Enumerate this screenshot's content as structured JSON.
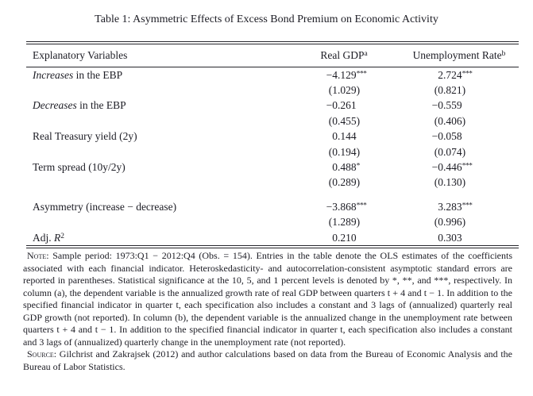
{
  "title": "Table 1: Asymmetric Effects of Excess Bond Premium on Economic Activity",
  "table": {
    "header": {
      "col0": "Explanatory Variables",
      "col1": {
        "text": "Real GDP",
        "sup": "a"
      },
      "col2": {
        "text": "Unemployment Rate",
        "sup": "b"
      }
    },
    "rows": [
      {
        "type": "coef",
        "parts": [
          {
            "text": "Increases",
            "style": "italic"
          },
          {
            "text": " in the EBP"
          }
        ],
        "a": {
          "value": "−4.129",
          "stars": "***"
        },
        "b": {
          "value": "2.724",
          "stars": "***"
        }
      },
      {
        "type": "se",
        "a": {
          "value": "(1.029)"
        },
        "b": {
          "value": "(0.821)"
        }
      },
      {
        "type": "coef",
        "parts": [
          {
            "text": "Decreases",
            "style": "italic"
          },
          {
            "text": " in the EBP"
          }
        ],
        "a": {
          "value": "−0.261"
        },
        "b": {
          "value": "−0.559"
        }
      },
      {
        "type": "se",
        "a": {
          "value": "(0.455)"
        },
        "b": {
          "value": "(0.406)"
        }
      },
      {
        "type": "coef",
        "parts": [
          {
            "text": "Real Treasury yield (2y)"
          }
        ],
        "a": {
          "value": "0.144"
        },
        "b": {
          "value": "−0.058"
        }
      },
      {
        "type": "se",
        "a": {
          "value": "(0.194)"
        },
        "b": {
          "value": "(0.074)"
        }
      },
      {
        "type": "coef",
        "parts": [
          {
            "text": "Term spread (10y/2y)"
          }
        ],
        "a": {
          "value": "0.488",
          "stars": "*"
        },
        "b": {
          "value": "−0.446",
          "stars": "***"
        }
      },
      {
        "type": "se",
        "a": {
          "value": "(0.289)"
        },
        "b": {
          "value": "(0.130)"
        }
      },
      {
        "type": "spacer"
      },
      {
        "type": "coef",
        "parts": [
          {
            "text": "Asymmetry (increase − decrease)"
          }
        ],
        "a": {
          "value": "−3.868",
          "stars": "***"
        },
        "b": {
          "value": "3.283",
          "stars": "***"
        }
      },
      {
        "type": "se",
        "a": {
          "value": "(1.289)"
        },
        "b": {
          "value": "(0.996)"
        }
      },
      {
        "type": "coef",
        "parts": [
          {
            "text": "Adj. "
          },
          {
            "text": "R",
            "style": "italic"
          },
          {
            "text": "2",
            "style": "sup"
          }
        ],
        "a": {
          "value": "0.210"
        },
        "b": {
          "value": "0.303"
        }
      }
    ]
  },
  "notes": {
    "note_label": "Note:",
    "note_text": "Sample period: 1973:Q1 − 2012:Q4 (Obs. = 154). Entries in the table denote the OLS estimates of the coefficients associated with each financial indicator. Heteroskedasticity- and autocorrelation-consistent asymptotic standard errors are reported in parentheses. Statistical significance at the 10, 5, and 1 percent levels is denoted by *, **, and ***, respectively. In column (a), the dependent variable is the annualized growth rate of real GDP between quarters t + 4 and t − 1. In addition to the specified financial indicator in quarter t, each specification also includes a constant and 3 lags of (annualized) quarterly real GDP growth (not reported). In column (b), the dependent variable is the annualized change in the unemployment rate between quarters t + 4 and t − 1. In addition to the specified financial indicator in quarter t, each specification also includes a constant and 3 lags of (annualized) quarterly change in the unemployment rate (not reported).",
    "source_label": "Source:",
    "source_text": "Gilchrist and Zakrajsek (2012) and author calculations based on data from the Bureau of Economic Analysis and the Bureau of Labor Statistics."
  }
}
